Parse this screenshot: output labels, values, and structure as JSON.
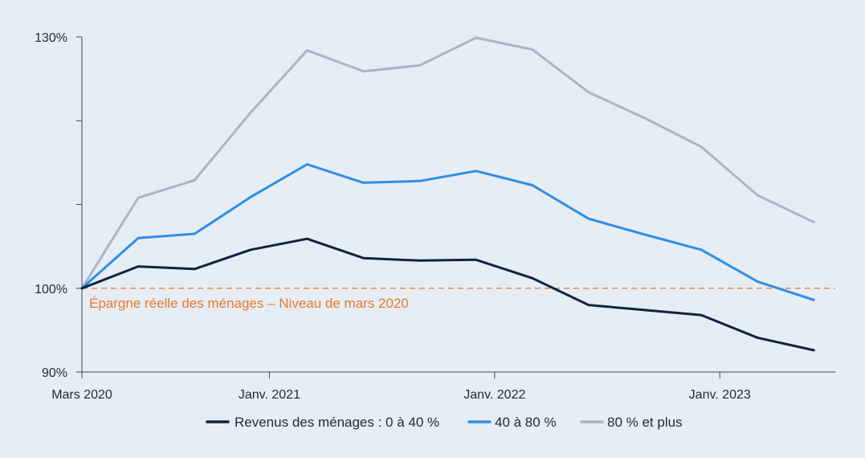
{
  "chart_data": {
    "type": "line",
    "title": "",
    "xlabel": "",
    "ylabel": "",
    "x": [
      "Mars 2020",
      "Juin 2020",
      "Sept. 2020",
      "Déc. 2020",
      "Mars 2021",
      "Juin 2021",
      "Sept. 2021",
      "Déc. 2021",
      "Mars 2022",
      "Juin 2022",
      "Sept. 2022",
      "Déc. 2022",
      "Mars 2023",
      "Juin 2023"
    ],
    "x_ticks": [
      {
        "label": "Mars 2020",
        "index": 0
      },
      {
        "label": "Janv. 2021",
        "index": 3.33
      },
      {
        "label": "Janv. 2022",
        "index": 7.33
      },
      {
        "label": "Janv. 2023",
        "index": 11.33
      }
    ],
    "ylim": [
      90,
      130
    ],
    "y_ticks": [
      {
        "value": 90,
        "label": "90%"
      },
      {
        "value": 100,
        "label": "100%"
      },
      {
        "value": 130,
        "label": "130%"
      }
    ],
    "y_minor_ticks": [
      110,
      120
    ],
    "grid": false,
    "legend_position": "bottom",
    "series": [
      {
        "name": "Revenus des ménages : 0 à 40 %",
        "color": "#0f2540",
        "values": [
          100.0,
          102.6,
          102.3,
          104.6,
          105.9,
          103.6,
          103.3,
          103.4,
          101.2,
          98.0,
          97.4,
          96.8,
          94.1,
          92.6
        ]
      },
      {
        "name": "40 à 80 %",
        "color": "#2e8fe6",
        "values": [
          100.0,
          106.0,
          106.5,
          110.9,
          114.8,
          112.6,
          112.8,
          114.0,
          112.3,
          108.3,
          106.4,
          104.6,
          100.8,
          98.6
        ]
      },
      {
        "name": "80 % et plus",
        "color": "#a9b6c8",
        "values": [
          100.0,
          110.8,
          112.9,
          121.0,
          128.4,
          125.9,
          126.6,
          129.9,
          128.5,
          123.4,
          120.3,
          116.9,
          111.1,
          107.9
        ]
      }
    ],
    "reference_line": {
      "value": 100,
      "color": "#e67a2e",
      "label": "Épargne réelle des ménages – Niveau de mars 2020"
    }
  }
}
